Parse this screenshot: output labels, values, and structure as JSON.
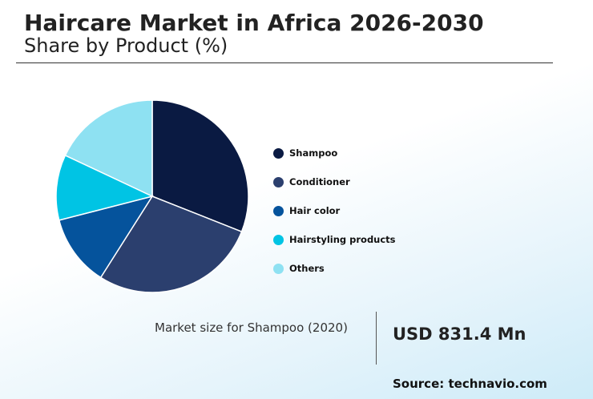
{
  "header": {
    "title": "Haircare Market in Africa 2026-2030",
    "subtitle": "Share by Product (%)"
  },
  "chart_data": {
    "type": "pie",
    "title": "Haircare Market in Africa 2026-2030",
    "subtitle": "Share by Product (%)",
    "categories": [
      "Shampoo",
      "Conditioner",
      "Hair color",
      "Hairstyling products",
      "Others"
    ],
    "values": [
      31,
      28,
      12,
      11,
      18
    ],
    "colors": [
      "#0a1a42",
      "#2b3f6e",
      "#05539c",
      "#00c4e4",
      "#8ee1f2"
    ],
    "legend_position": "right"
  },
  "market_size": {
    "label": "Market size for Shampoo (2020)",
    "value": "USD 831.4 Mn"
  },
  "source": "Source: technavio.com"
}
